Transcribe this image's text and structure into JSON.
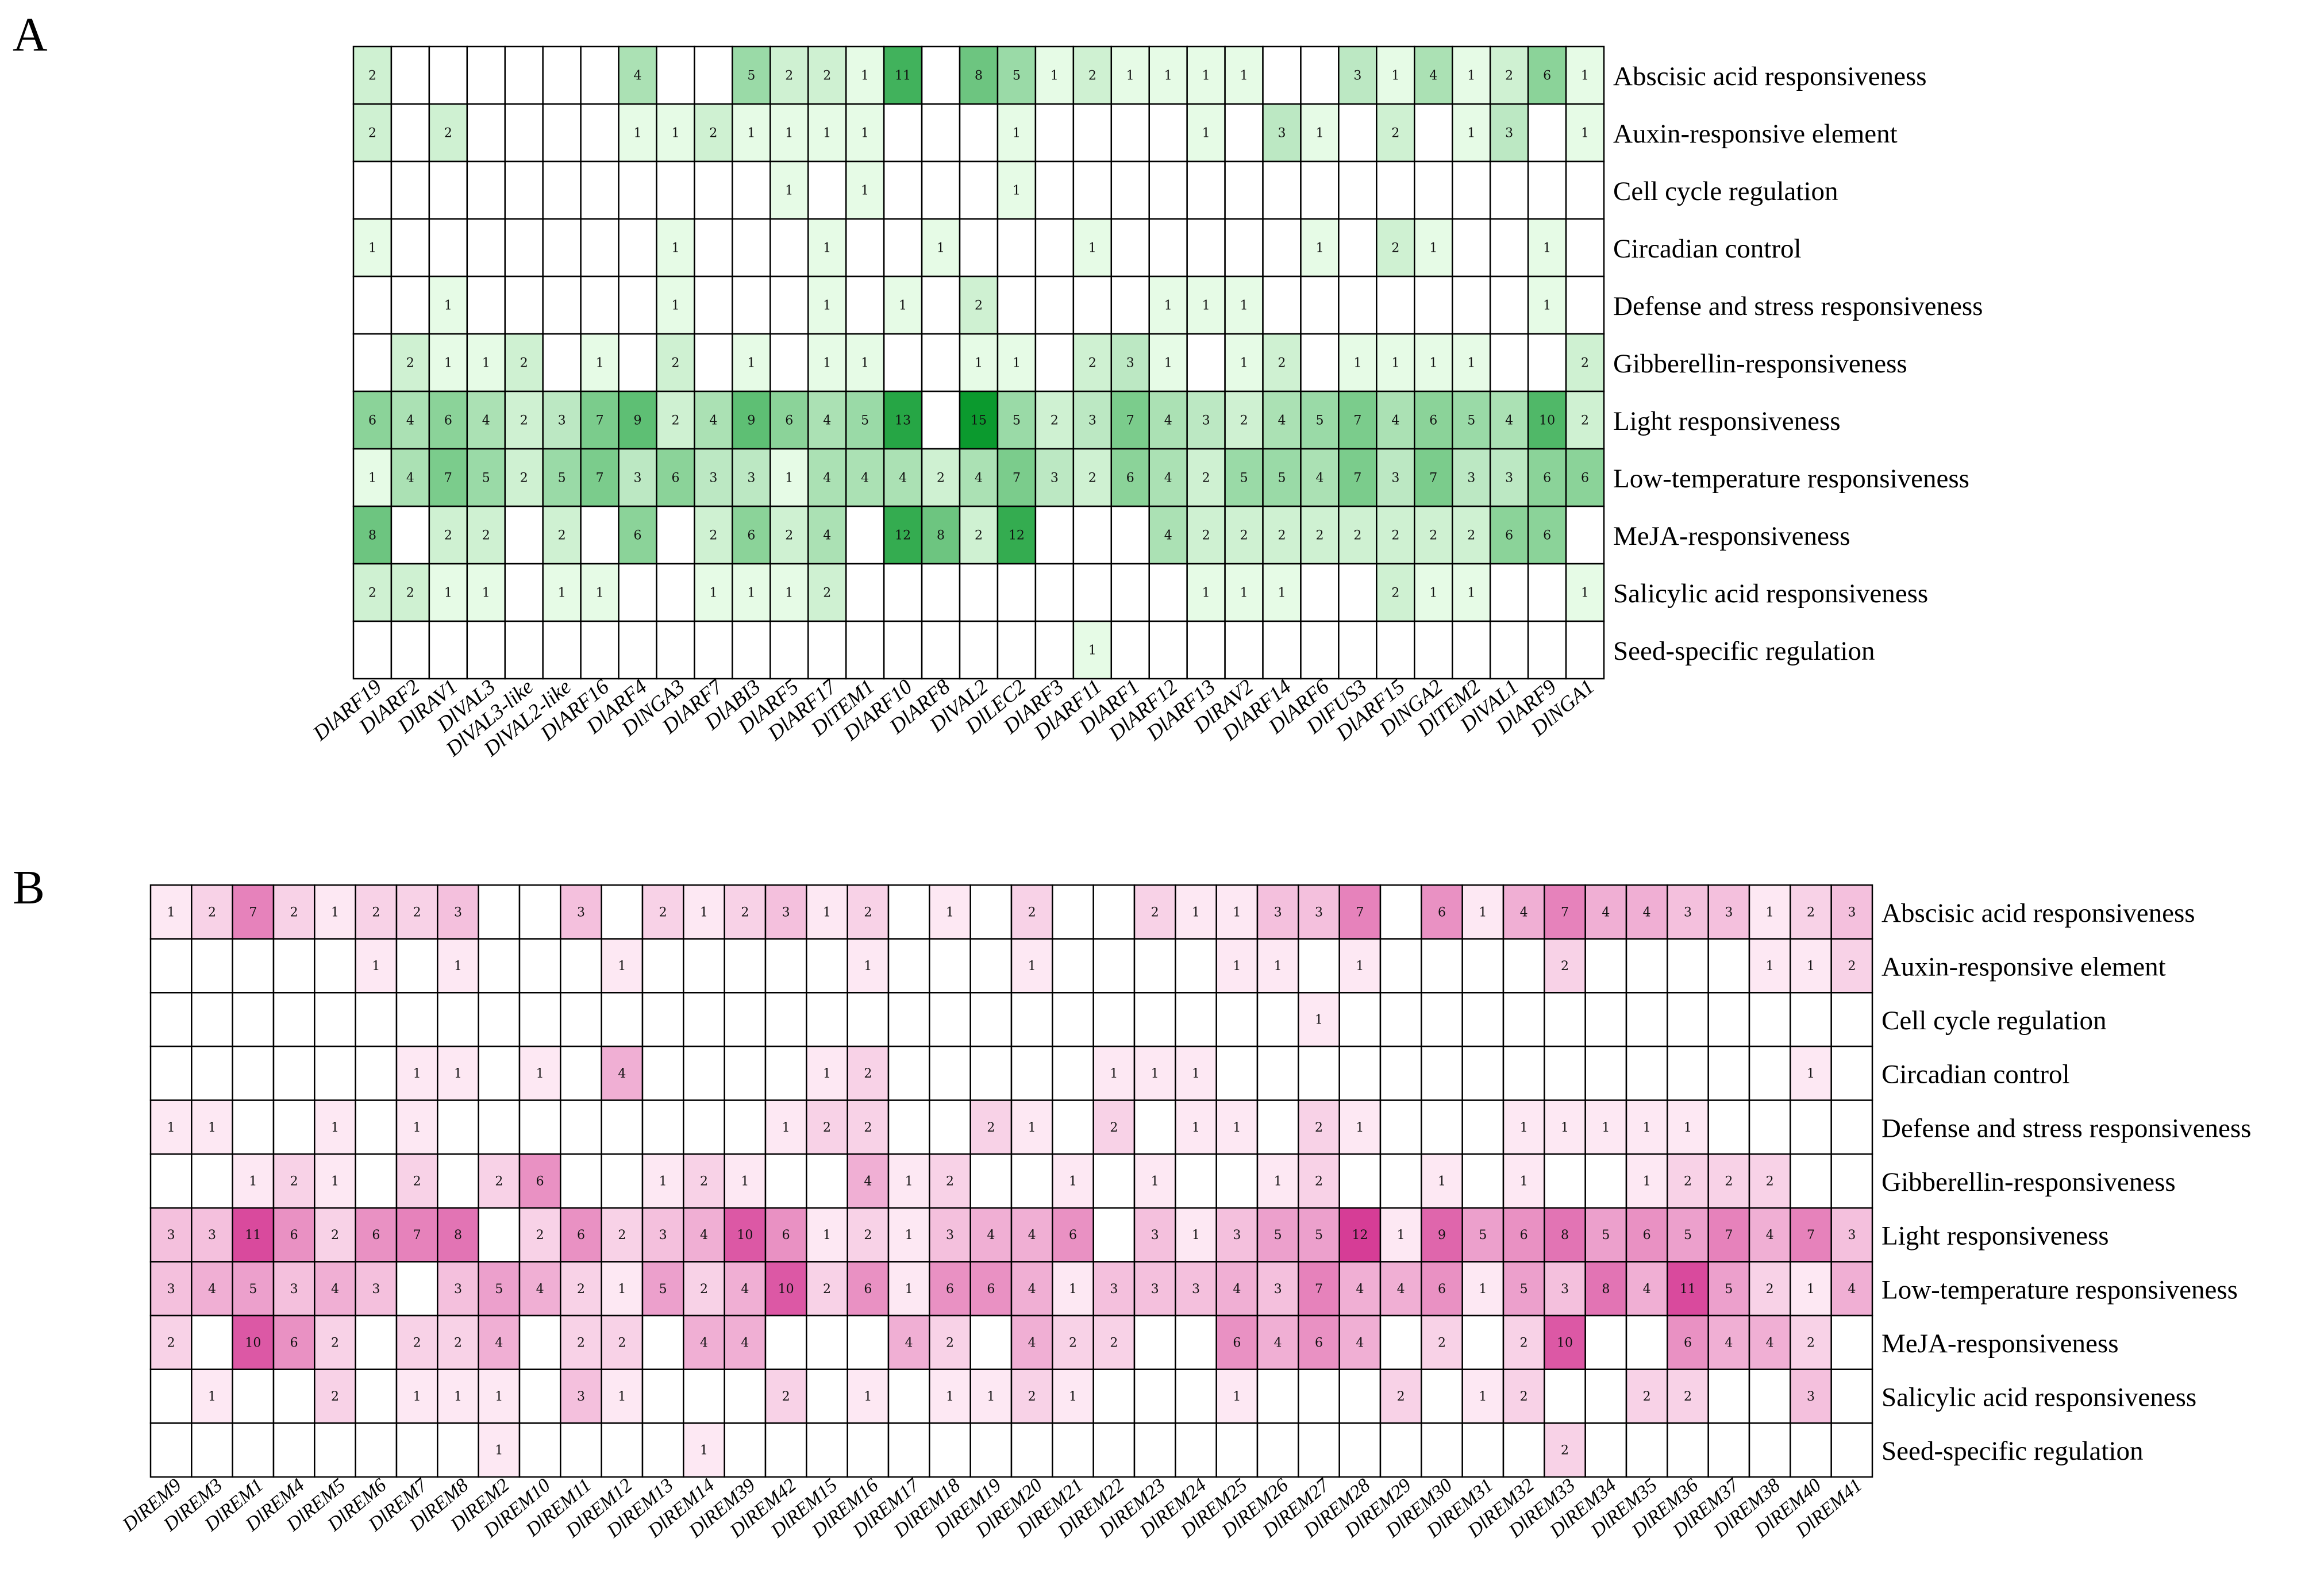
{
  "chart_data": [
    {
      "type": "heatmap",
      "panel_label": "A",
      "color_scale": {
        "low": "#e6fbe6",
        "high": "#0b9a2e"
      },
      "rows": [
        "Abscisic acid responsiveness",
        "Auxin-responsive element",
        "Cell cycle regulation",
        "Circadian control",
        "Defense and stress responsiveness",
        "Gibberellin-responsiveness",
        "Light responsiveness",
        "Low-temperature responsiveness",
        "MeJA-responsiveness",
        "Salicylic acid responsiveness",
        "Seed-specific regulation"
      ],
      "columns": [
        "DlARF19",
        "DlARF2",
        "DlRAV1",
        "DlVAL3",
        "DlVAL3-like",
        "DlVAL2-like",
        "DlARF16",
        "DlARF4",
        "DlNGA3",
        "DlARF7",
        "DlABI3",
        "DlARF5",
        "DlARF17",
        "DlTEM1",
        "DlARF10",
        "DlARF8",
        "DlVAL2",
        "DlLEC2",
        "DlARF3",
        "DlARF11",
        "DlARF1",
        "DlARF12",
        "DlARF13",
        "DlRAV2",
        "DlARF14",
        "DlARF6",
        "DlFUS3",
        "DlARF15",
        "DlNGA2",
        "DlTEM2",
        "DlVAL1",
        "DlARF9",
        "DlNGA1"
      ],
      "values": [
        [
          2,
          0,
          0,
          0,
          0,
          0,
          0,
          4,
          0,
          0,
          5,
          2,
          2,
          1,
          11,
          0,
          8,
          5,
          1,
          2,
          1,
          1,
          1,
          1,
          0,
          0,
          3,
          1,
          4,
          1,
          2,
          6,
          1
        ],
        [
          2,
          0,
          2,
          0,
          0,
          0,
          0,
          1,
          1,
          2,
          1,
          1,
          1,
          1,
          0,
          0,
          0,
          1,
          0,
          0,
          0,
          0,
          1,
          0,
          3,
          1,
          0,
          2,
          0,
          1,
          3,
          0,
          1
        ],
        [
          0,
          0,
          0,
          0,
          0,
          0,
          0,
          0,
          0,
          0,
          0,
          1,
          0,
          1,
          0,
          0,
          0,
          1,
          0,
          0,
          0,
          0,
          0,
          0,
          0,
          0,
          0,
          0,
          0,
          0,
          0,
          0,
          0
        ],
        [
          1,
          0,
          0,
          0,
          0,
          0,
          0,
          0,
          1,
          0,
          0,
          0,
          1,
          0,
          0,
          1,
          0,
          0,
          0,
          1,
          0,
          0,
          0,
          0,
          0,
          1,
          0,
          2,
          1,
          0,
          0,
          1,
          0
        ],
        [
          0,
          0,
          1,
          0,
          0,
          0,
          0,
          0,
          1,
          0,
          0,
          0,
          1,
          0,
          1,
          0,
          2,
          0,
          0,
          0,
          0,
          1,
          1,
          1,
          0,
          0,
          0,
          0,
          0,
          0,
          0,
          1,
          0
        ],
        [
          0,
          2,
          1,
          1,
          2,
          0,
          1,
          0,
          2,
          0,
          1,
          0,
          1,
          1,
          0,
          0,
          1,
          1,
          0,
          2,
          3,
          1,
          0,
          1,
          2,
          0,
          1,
          1,
          1,
          1,
          0,
          0,
          2
        ],
        [
          6,
          4,
          6,
          4,
          2,
          3,
          7,
          9,
          2,
          4,
          9,
          6,
          4,
          5,
          13,
          0,
          15,
          5,
          2,
          3,
          7,
          4,
          3,
          2,
          4,
          5,
          7,
          4,
          6,
          5,
          4,
          10,
          2
        ],
        [
          1,
          4,
          7,
          5,
          2,
          5,
          7,
          3,
          6,
          3,
          3,
          1,
          4,
          4,
          4,
          2,
          4,
          7,
          3,
          2,
          6,
          4,
          2,
          5,
          5,
          4,
          7,
          3,
          7,
          3,
          3,
          6,
          6
        ],
        [
          8,
          0,
          2,
          2,
          0,
          2,
          0,
          6,
          0,
          2,
          6,
          2,
          4,
          0,
          12,
          8,
          2,
          12,
          0,
          0,
          0,
          4,
          2,
          2,
          2,
          2,
          2,
          2,
          2,
          2,
          6,
          6,
          0
        ],
        [
          2,
          2,
          1,
          1,
          0,
          1,
          1,
          0,
          0,
          1,
          1,
          1,
          2,
          0,
          0,
          0,
          0,
          0,
          0,
          0,
          0,
          0,
          1,
          1,
          1,
          0,
          0,
          2,
          1,
          1,
          0,
          0,
          1
        ],
        [
          0,
          0,
          0,
          0,
          0,
          0,
          0,
          0,
          0,
          0,
          0,
          0,
          0,
          0,
          0,
          0,
          0,
          0,
          0,
          1,
          0,
          0,
          0,
          0,
          0,
          0,
          0,
          0,
          0,
          0,
          0,
          0,
          0
        ]
      ]
    },
    {
      "type": "heatmap",
      "panel_label": "B",
      "color_scale": {
        "low": "#fde8f3",
        "high": "#d63d96"
      },
      "rows": [
        "Abscisic acid responsiveness",
        "Auxin-responsive element",
        "Cell cycle regulation",
        "Circadian control",
        "Defense and stress responsiveness",
        "Gibberellin-responsiveness",
        "Light responsiveness",
        "Low-temperature responsiveness",
        "MeJA-responsiveness",
        "Salicylic acid responsiveness",
        "Seed-specific regulation"
      ],
      "columns": [
        "DlREM9",
        "DlREM3",
        "DlREM1",
        "DlREM4",
        "DlREM5",
        "DlREM6",
        "DlREM7",
        "DlREM8",
        "DlREM2",
        "DlREM10",
        "DlREM11",
        "DlREM12",
        "DlREM13",
        "DlREM14",
        "DlREM39",
        "DlREM42",
        "DlREM15",
        "DlREM16",
        "DlREM17",
        "DlREM18",
        "DlREM19",
        "DlREM20",
        "DlREM21",
        "DlREM22",
        "DlREM23",
        "DlREM24",
        "DlREM25",
        "DlREM26",
        "DlREM27",
        "DlREM28",
        "DlREM29",
        "DlREM30",
        "DlREM31",
        "DlREM32",
        "DlREM33",
        "DlREM34",
        "DlREM35",
        "DlREM36",
        "DlREM37",
        "DlREM38",
        "DlREM40",
        "DlREM41"
      ],
      "values": [
        [
          1,
          2,
          7,
          2,
          1,
          2,
          2,
          3,
          0,
          0,
          3,
          0,
          2,
          1,
          2,
          3,
          1,
          2,
          0,
          1,
          0,
          2,
          0,
          0,
          2,
          1,
          1,
          3,
          3,
          7,
          0,
          6,
          1,
          4,
          7,
          4,
          4,
          3,
          3,
          1,
          2,
          3
        ],
        [
          0,
          0,
          0,
          0,
          0,
          1,
          0,
          1,
          0,
          0,
          0,
          1,
          0,
          0,
          0,
          0,
          0,
          1,
          0,
          0,
          0,
          1,
          0,
          0,
          0,
          0,
          1,
          1,
          0,
          1,
          0,
          0,
          0,
          0,
          2,
          0,
          0,
          0,
          0,
          1,
          1,
          2
        ],
        [
          0,
          0,
          0,
          0,
          0,
          0,
          0,
          0,
          0,
          0,
          0,
          0,
          0,
          0,
          0,
          0,
          0,
          0,
          0,
          0,
          0,
          0,
          0,
          0,
          0,
          0,
          0,
          0,
          1,
          0,
          0,
          0,
          0,
          0,
          0,
          0,
          0,
          0,
          0,
          0,
          0,
          0
        ],
        [
          0,
          0,
          0,
          0,
          0,
          0,
          1,
          1,
          0,
          1,
          0,
          4,
          0,
          0,
          0,
          0,
          1,
          2,
          0,
          0,
          0,
          0,
          0,
          1,
          1,
          1,
          0,
          0,
          0,
          0,
          0,
          0,
          0,
          0,
          0,
          0,
          0,
          0,
          0,
          0,
          1,
          0
        ],
        [
          1,
          1,
          0,
          0,
          1,
          0,
          1,
          0,
          0,
          0,
          0,
          0,
          0,
          0,
          0,
          1,
          2,
          2,
          0,
          0,
          2,
          1,
          0,
          2,
          0,
          1,
          1,
          0,
          2,
          1,
          0,
          0,
          0,
          1,
          1,
          1,
          1,
          1,
          0,
          0,
          0,
          0
        ],
        [
          0,
          0,
          1,
          2,
          1,
          0,
          2,
          0,
          2,
          6,
          0,
          0,
          1,
          2,
          1,
          0,
          0,
          4,
          1,
          2,
          0,
          0,
          1,
          0,
          1,
          0,
          0,
          1,
          2,
          0,
          0,
          1,
          0,
          1,
          0,
          0,
          1,
          2,
          2,
          2,
          0,
          0
        ],
        [
          3,
          3,
          11,
          6,
          2,
          6,
          7,
          8,
          0,
          2,
          6,
          2,
          3,
          4,
          10,
          6,
          1,
          2,
          1,
          3,
          4,
          4,
          6,
          0,
          3,
          1,
          3,
          5,
          5,
          12,
          1,
          9,
          5,
          6,
          8,
          5,
          6,
          5,
          7,
          4,
          7,
          3
        ],
        [
          3,
          4,
          5,
          3,
          4,
          3,
          0,
          3,
          5,
          4,
          2,
          1,
          5,
          2,
          4,
          10,
          2,
          6,
          1,
          6,
          6,
          4,
          1,
          3,
          3,
          3,
          4,
          3,
          7,
          4,
          4,
          6,
          1,
          5,
          3,
          8,
          4,
          11,
          5,
          2,
          1,
          4
        ],
        [
          2,
          0,
          10,
          6,
          2,
          0,
          2,
          2,
          4,
          0,
          2,
          2,
          0,
          4,
          4,
          0,
          0,
          0,
          4,
          2,
          0,
          4,
          2,
          2,
          0,
          0,
          6,
          4,
          6,
          4,
          0,
          2,
          0,
          2,
          10,
          0,
          0,
          6,
          4,
          4,
          2,
          0
        ],
        [
          0,
          1,
          0,
          0,
          2,
          0,
          1,
          1,
          1,
          0,
          3,
          1,
          0,
          0,
          0,
          2,
          0,
          1,
          0,
          1,
          1,
          2,
          1,
          0,
          0,
          0,
          1,
          0,
          0,
          0,
          2,
          0,
          1,
          2,
          0,
          0,
          2,
          2,
          0,
          0,
          3,
          0
        ],
        [
          0,
          0,
          0,
          0,
          0,
          0,
          0,
          0,
          1,
          0,
          0,
          0,
          0,
          1,
          0,
          0,
          0,
          0,
          0,
          0,
          0,
          0,
          0,
          0,
          0,
          0,
          0,
          0,
          0,
          0,
          0,
          0,
          0,
          0,
          2,
          0,
          0,
          0,
          0,
          0,
          0,
          0
        ]
      ]
    }
  ]
}
